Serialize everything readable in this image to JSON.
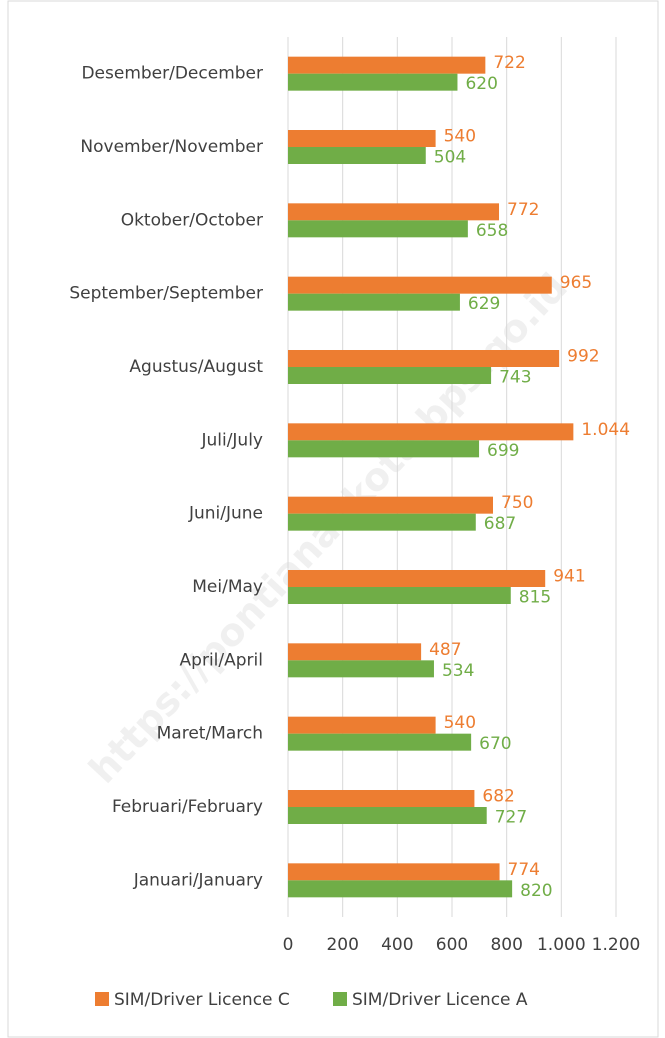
{
  "chart_data": {
    "type": "hbar",
    "categories": [
      "Januari/January",
      "Februari/February",
      "Maret/March",
      "April/April",
      "Mei/May",
      "Juni/June",
      "Juli/July",
      "Agustus/August",
      "September/September",
      "Oktober/October",
      "November/November",
      "Desember/December"
    ],
    "series": [
      {
        "name": "SIM/Driver Licence C",
        "color": "#ed7d31",
        "values": [
          774,
          682,
          540,
          487,
          941,
          750,
          1044,
          992,
          965,
          772,
          540,
          722
        ],
        "value_labels": [
          "774",
          "682",
          "540",
          "487",
          "941",
          "750",
          "1.044",
          "992",
          "965",
          "772",
          "540",
          "722"
        ]
      },
      {
        "name": "SIM/Driver Licence A",
        "color": "#70ad47",
        "values": [
          820,
          727,
          670,
          534,
          815,
          687,
          699,
          743,
          629,
          658,
          504,
          620
        ]
      }
    ],
    "xlim": [
      0,
      1200
    ],
    "xticks": [
      0,
      200,
      400,
      600,
      800,
      {
        "value": 1000,
        "label": "1.000"
      },
      {
        "value": 1200,
        "label": "1.200"
      }
    ],
    "grid": true,
    "legend": "bottom",
    "watermark": "https://pontianakkota.bps.go.id"
  }
}
